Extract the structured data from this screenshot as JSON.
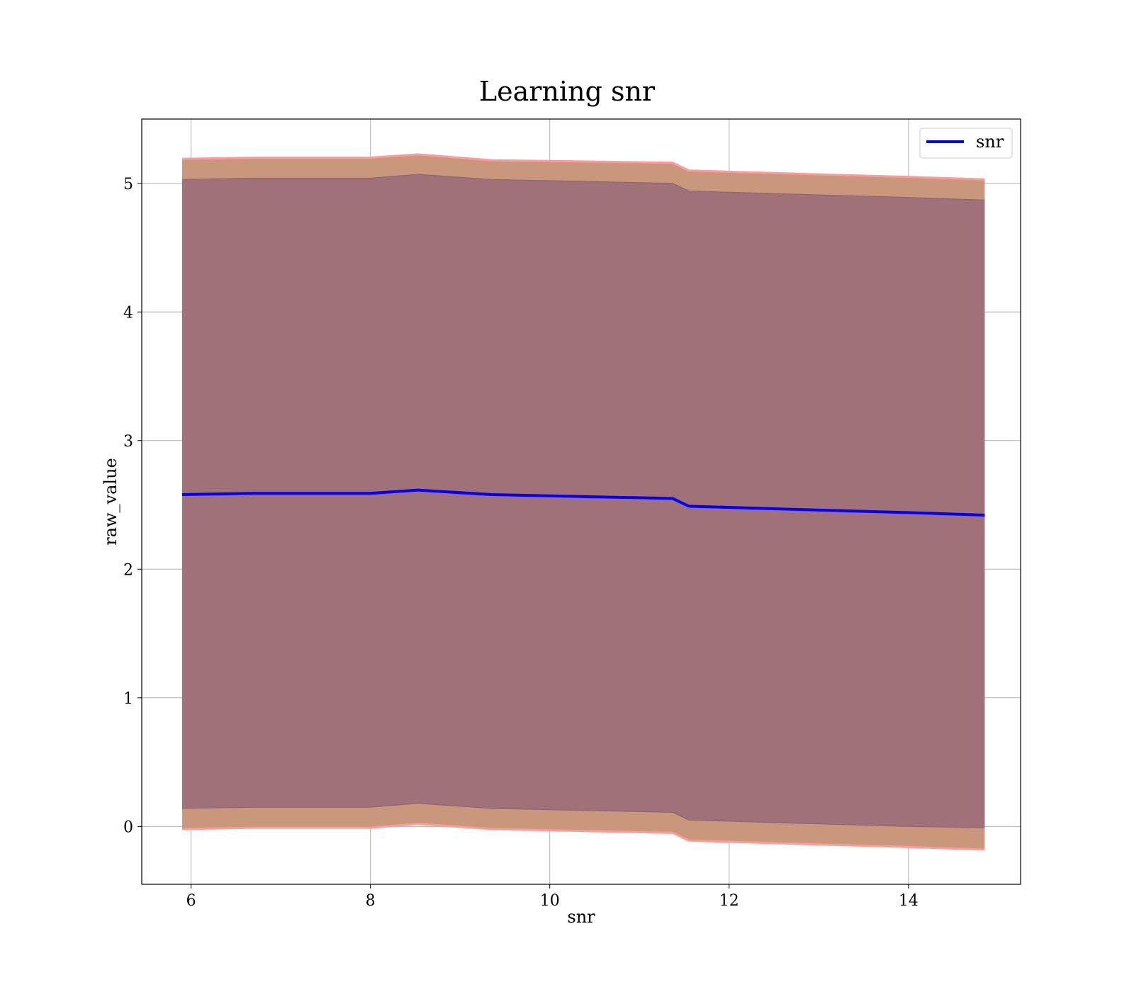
{
  "chart_data": {
    "type": "line",
    "title": "Learning snr",
    "xlabel": "snr",
    "ylabel": "raw_value",
    "xlim": [
      5.45,
      15.25
    ],
    "ylim": [
      -0.45,
      5.5
    ],
    "xticks": [
      6,
      8,
      10,
      12,
      14
    ],
    "yticks": [
      0,
      1,
      2,
      3,
      4,
      5
    ],
    "grid": true,
    "legend": {
      "placement": "top-right",
      "entries": [
        "snr"
      ]
    },
    "colors": {
      "line": "#0000ff",
      "outer_band": "#c9977c",
      "outer_band_edge": "#ff9a9a",
      "inner_band": "#a1717a",
      "inner_band_edge": "#8f6474"
    },
    "series": [
      {
        "name": "snr",
        "x": [
          5.9,
          6.7,
          8.0,
          8.53,
          9.35,
          11.37,
          11.55,
          12.5,
          14.0,
          14.85
        ],
        "y": [
          2.58,
          2.59,
          2.59,
          2.615,
          2.58,
          2.55,
          2.49,
          2.47,
          2.44,
          2.42
        ],
        "outer_upper": [
          5.19,
          5.2,
          5.2,
          5.225,
          5.18,
          5.16,
          5.1,
          5.08,
          5.05,
          5.03
        ],
        "outer_lower": [
          -0.02,
          -0.01,
          -0.01,
          0.02,
          -0.02,
          -0.05,
          -0.11,
          -0.13,
          -0.16,
          -0.18
        ],
        "inner_upper": [
          5.03,
          5.04,
          5.04,
          5.07,
          5.03,
          5.0,
          4.94,
          4.92,
          4.89,
          4.87
        ],
        "inner_lower": [
          0.14,
          0.15,
          0.15,
          0.18,
          0.14,
          0.11,
          0.05,
          0.03,
          0.0,
          -0.01
        ]
      }
    ]
  }
}
